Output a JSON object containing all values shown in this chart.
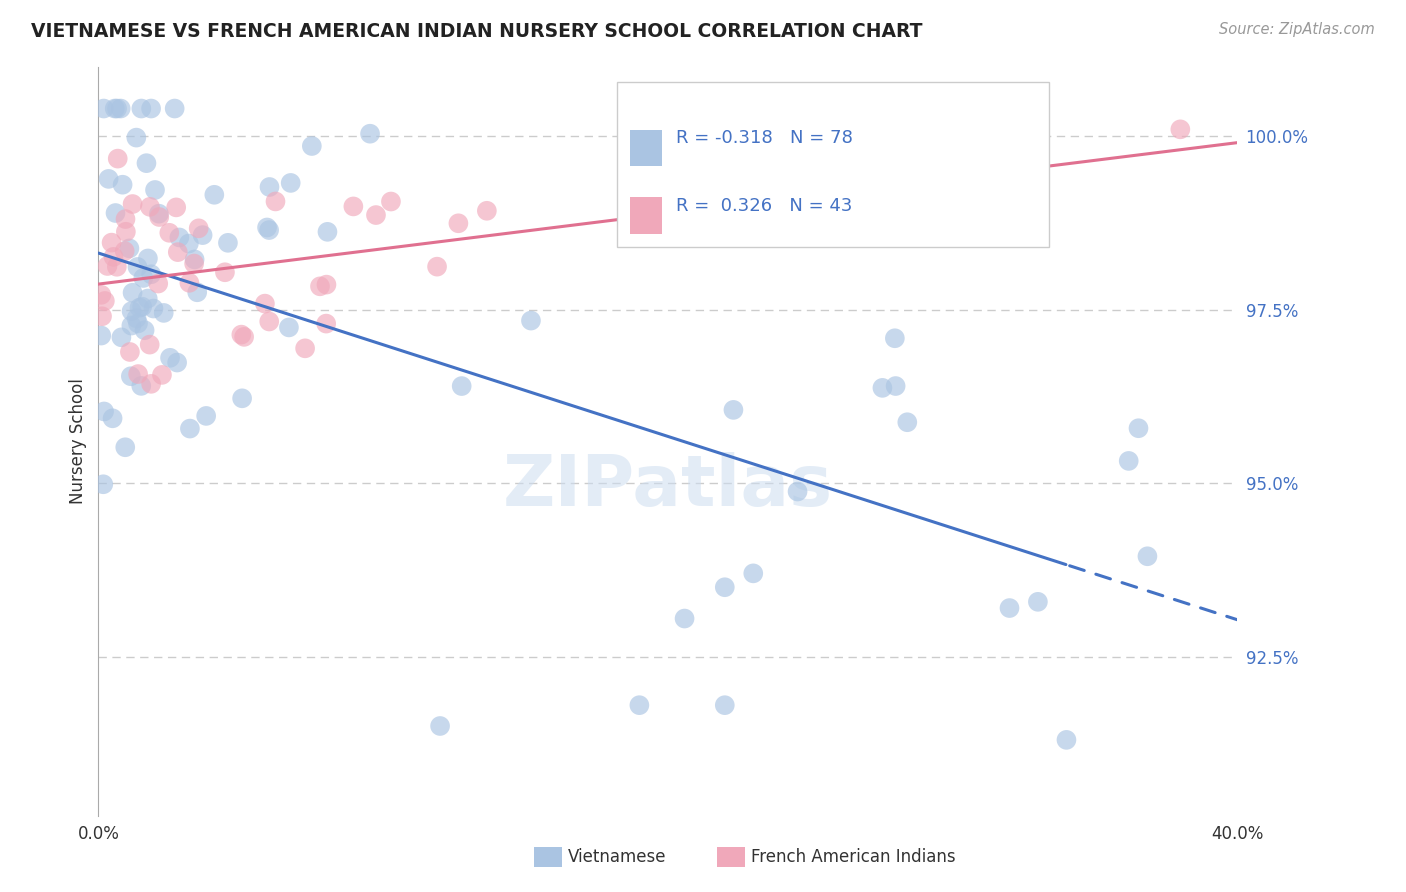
{
  "title": "VIETNAMESE VS FRENCH AMERICAN INDIAN NURSERY SCHOOL CORRELATION CHART",
  "source": "Source: ZipAtlas.com",
  "ylabel": "Nursery School",
  "xmin": 0.0,
  "xmax": 0.4,
  "ymin": 90.2,
  "ymax": 101.0,
  "color_blue": "#aac4e2",
  "color_pink": "#f0a8ba",
  "line_color_blue": "#4472c4",
  "line_color_pink": "#e07090",
  "watermark": "ZIPatlas",
  "background_color": "#ffffff",
  "grid_color": "#cccccc",
  "text_color_blue": "#4472c4",
  "text_color_dark": "#333333",
  "legend_r1_val": "-0.318",
  "legend_n1_val": "78",
  "legend_r2_val": "0.326",
  "legend_n2_val": "43",
  "ytick_vals": [
    92.5,
    95.0,
    97.5,
    100.0
  ],
  "ytick_labels": [
    "92.5%",
    "95.0%",
    "97.5%",
    "100.0%"
  ]
}
